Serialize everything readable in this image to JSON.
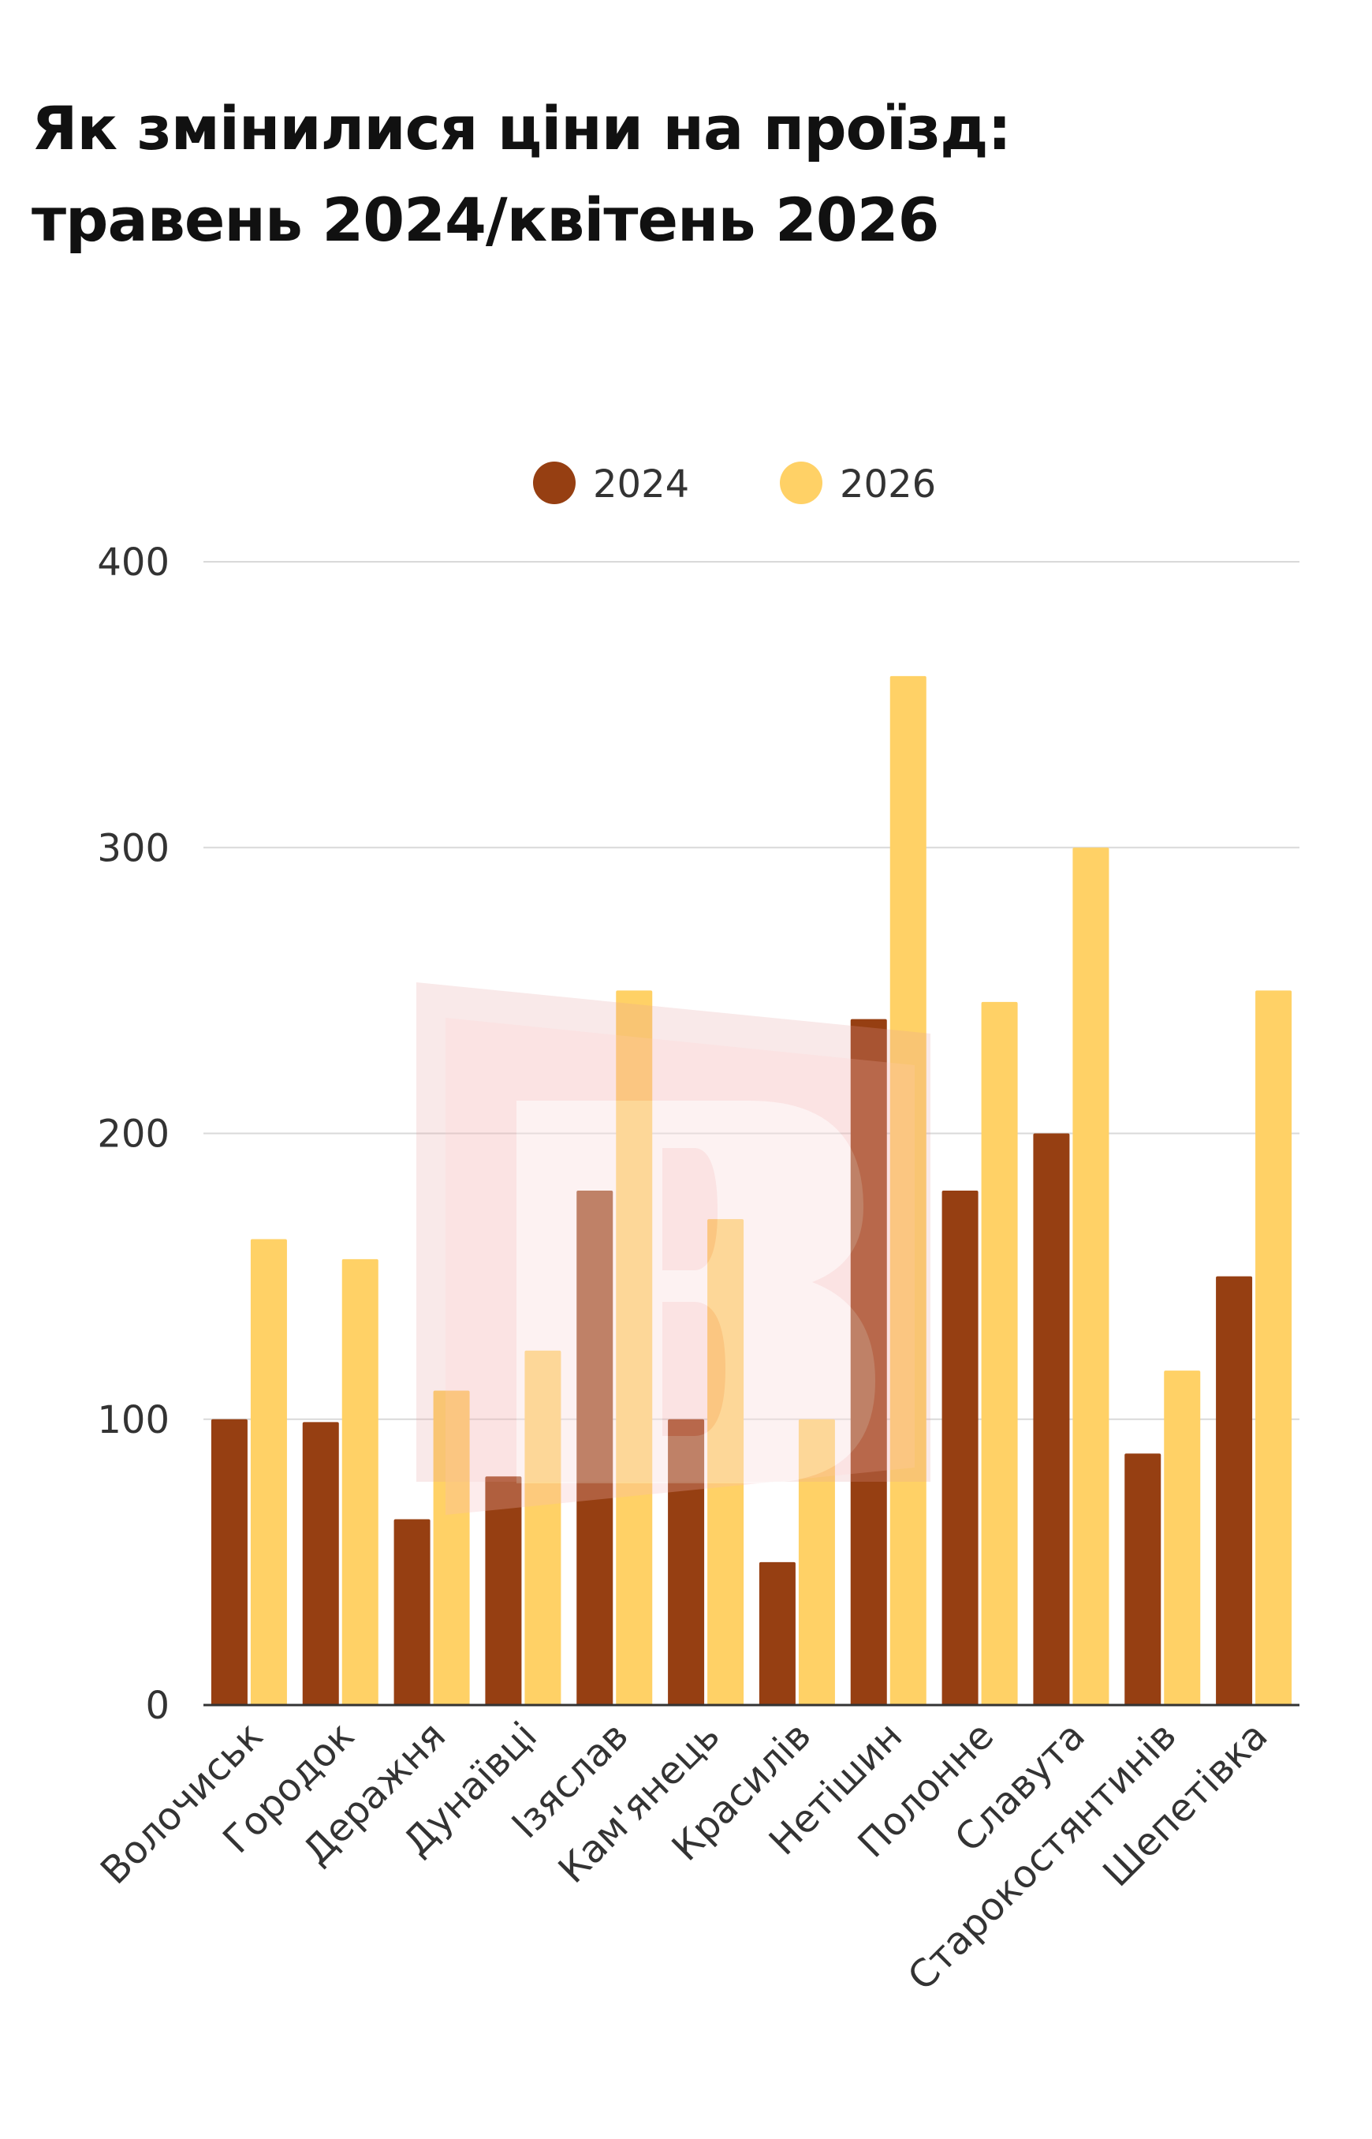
{
  "title": {
    "line1": "Як змінилися ціни на проїзд:",
    "line2": "травень 2024/квітень 2026"
  },
  "colors": {
    "series_2024": "#963F12",
    "series_2026": "#FFD166",
    "grid": "#d9d9d9",
    "axis": "#333333",
    "watermark": "#E8A0A0"
  },
  "watermark_icon": "letter-v-logo-icon",
  "chart_data": {
    "type": "bar",
    "title": "Як змінилися ціни на проїзд: травень 2024/квітень 2026",
    "xlabel": "",
    "ylabel": "",
    "ylim": [
      0,
      400
    ],
    "yticks": [
      0,
      100,
      200,
      300,
      400
    ],
    "grid": true,
    "legend_position": "top-center",
    "categories": [
      "Волочиськ",
      "Городок",
      "Деражня",
      "Дунаївці",
      "Ізяслав",
      "Кам'янець",
      "Красилів",
      "Нетішин",
      "Полонне",
      "Славута",
      "Старокостянтинів",
      "Шепетівка"
    ],
    "series": [
      {
        "name": "2024",
        "color": "#963F12",
        "values": [
          100,
          99,
          65,
          80,
          180,
          100,
          50,
          240,
          180,
          200,
          88,
          150
        ]
      },
      {
        "name": "2026",
        "color": "#FFD166",
        "values": [
          163,
          156,
          110,
          124,
          250,
          170,
          100,
          360,
          246,
          300,
          117,
          250
        ]
      }
    ]
  }
}
